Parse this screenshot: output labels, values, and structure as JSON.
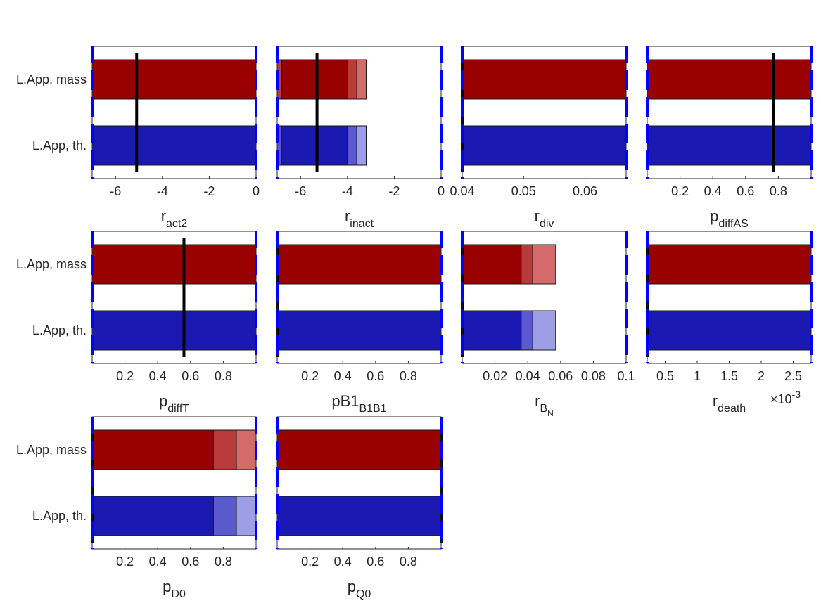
{
  "figure": {
    "row_labels": [
      "L.App, mass",
      "L.App, th."
    ]
  },
  "colors": {
    "mass_dark": "#990000",
    "mass_mid": "#b83a3a",
    "mass_light": "#d46a6a",
    "th_dark": "#1a1ab3",
    "th_mid": "#5a5acc",
    "th_light": "#9e9ee6",
    "bound_line": "#0000ff",
    "estimate_line": "#000000"
  },
  "chart_data": [
    {
      "type": "bar",
      "xlabel_main": "r",
      "xlabel_sub": "act2",
      "xlim": [
        -7,
        0
      ],
      "xticks": [
        -6,
        -4,
        -2,
        0
      ],
      "xtick_labels": [
        "-6",
        "-4",
        "-2",
        "0"
      ],
      "estimate": -5.1,
      "series": [
        {
          "segments": [
            {
              "from": -7,
              "to": 0,
              "shade": "dark"
            }
          ]
        },
        {
          "segments": [
            {
              "from": -7,
              "to": 0,
              "shade": "dark"
            }
          ]
        }
      ]
    },
    {
      "type": "bar",
      "xlabel_main": "r",
      "xlabel_sub": "inact",
      "xlim": [
        -7,
        0
      ],
      "xticks": [
        -6,
        -4,
        -2,
        0
      ],
      "xtick_labels": [
        "-6",
        "-4",
        "-2",
        "0"
      ],
      "estimate": -5.3,
      "series": [
        {
          "segments": [
            {
              "from": -7,
              "to": -6.8,
              "shade": "mid"
            },
            {
              "from": -6.8,
              "to": -4.0,
              "shade": "dark"
            },
            {
              "from": -4.0,
              "to": -3.6,
              "shade": "mid"
            },
            {
              "from": -3.6,
              "to": -3.2,
              "shade": "light"
            }
          ]
        },
        {
          "segments": [
            {
              "from": -7,
              "to": -6.8,
              "shade": "mid"
            },
            {
              "from": -6.8,
              "to": -4.0,
              "shade": "dark"
            },
            {
              "from": -4.0,
              "to": -3.6,
              "shade": "mid"
            },
            {
              "from": -3.6,
              "to": -3.2,
              "shade": "light"
            }
          ]
        }
      ]
    },
    {
      "type": "bar",
      "xlabel_main": "r",
      "xlabel_sub": "div",
      "xlim": [
        0.04,
        0.0667
      ],
      "xticks": [
        0.04,
        0.05,
        0.06
      ],
      "xtick_labels": [
        "0.04",
        "0.05",
        "0.06"
      ],
      "estimate": 0.04,
      "series": [
        {
          "segments": [
            {
              "from": 0.04,
              "to": 0.0667,
              "shade": "dark"
            }
          ]
        },
        {
          "segments": [
            {
              "from": 0.04,
              "to": 0.0667,
              "shade": "dark"
            }
          ]
        }
      ]
    },
    {
      "type": "bar",
      "xlabel_main": "p",
      "xlabel_sub": "diffAS",
      "xlim": [
        0,
        1
      ],
      "xticks": [
        0.2,
        0.4,
        0.6,
        0.8
      ],
      "xtick_labels": [
        "0.2",
        "0.4",
        "0.6",
        "0.8"
      ],
      "estimate": 0.77,
      "series": [
        {
          "segments": [
            {
              "from": 0,
              "to": 1,
              "shade": "dark"
            }
          ]
        },
        {
          "segments": [
            {
              "from": 0,
              "to": 1,
              "shade": "dark"
            }
          ]
        }
      ]
    },
    {
      "type": "bar",
      "xlabel_main": "p",
      "xlabel_sub": "diffT",
      "xlim": [
        0,
        1
      ],
      "xticks": [
        0.2,
        0.4,
        0.6,
        0.8
      ],
      "xtick_labels": [
        "0.2",
        "0.4",
        "0.6",
        "0.8"
      ],
      "estimate": 0.56,
      "series": [
        {
          "segments": [
            {
              "from": 0,
              "to": 1,
              "shade": "dark"
            }
          ]
        },
        {
          "segments": [
            {
              "from": 0,
              "to": 1,
              "shade": "dark"
            }
          ]
        }
      ]
    },
    {
      "type": "bar",
      "xlabel_main": "pB1",
      "xlabel_sub": "B1B1",
      "xlim": [
        0,
        1
      ],
      "xticks": [
        0.2,
        0.4,
        0.6,
        0.8
      ],
      "xtick_labels": [
        "0.2",
        "0.4",
        "0.6",
        "0.8"
      ],
      "estimate": 0.0,
      "series": [
        {
          "segments": [
            {
              "from": 0,
              "to": 1,
              "shade": "dark"
            }
          ]
        },
        {
          "segments": [
            {
              "from": 0,
              "to": 1,
              "shade": "dark"
            }
          ]
        }
      ]
    },
    {
      "type": "bar",
      "xlabel_main": "r",
      "xlabel_sub": "B",
      "xlabel_subsub": "N",
      "xlim": [
        0,
        0.1
      ],
      "xticks": [
        0.02,
        0.04,
        0.06,
        0.08,
        0.1
      ],
      "xtick_labels": [
        "0.02",
        "0.04",
        "0.06",
        "0.08",
        "0.1"
      ],
      "estimate": 0.0,
      "series": [
        {
          "segments": [
            {
              "from": 0,
              "to": 0.036,
              "shade": "dark"
            },
            {
              "from": 0.036,
              "to": 0.043,
              "shade": "mid"
            },
            {
              "from": 0.043,
              "to": 0.057,
              "shade": "light"
            }
          ]
        },
        {
          "segments": [
            {
              "from": 0,
              "to": 0.036,
              "shade": "dark"
            },
            {
              "from": 0.036,
              "to": 0.043,
              "shade": "mid"
            },
            {
              "from": 0.043,
              "to": 0.057,
              "shade": "light"
            }
          ]
        }
      ]
    },
    {
      "type": "bar",
      "xlabel_main": "r",
      "xlabel_sub": "death",
      "exponent_label": "×10",
      "exponent_power": "-3",
      "xlim": [
        0.00022,
        0.00278
      ],
      "xticks": [
        0.0005,
        0.001,
        0.0015,
        0.002,
        0.0025
      ],
      "xtick_labels": [
        "0.5",
        "1",
        "1.5",
        "2",
        "2.5"
      ],
      "estimate": 0.00022,
      "series": [
        {
          "segments": [
            {
              "from": 0.00022,
              "to": 0.00278,
              "shade": "dark"
            }
          ]
        },
        {
          "segments": [
            {
              "from": 0.00022,
              "to": 0.00278,
              "shade": "dark"
            }
          ]
        }
      ]
    },
    {
      "type": "bar",
      "xlabel_main": "p",
      "xlabel_sub": "D0",
      "xlim": [
        0,
        1
      ],
      "xticks": [
        0.2,
        0.4,
        0.6,
        0.8
      ],
      "xtick_labels": [
        "0.2",
        "0.4",
        "0.6",
        "0.8"
      ],
      "estimate": 0.0,
      "series": [
        {
          "segments": [
            {
              "from": 0,
              "to": 0.74,
              "shade": "dark"
            },
            {
              "from": 0.74,
              "to": 0.88,
              "shade": "mid"
            },
            {
              "from": 0.88,
              "to": 1.0,
              "shade": "light"
            }
          ]
        },
        {
          "segments": [
            {
              "from": 0,
              "to": 0.74,
              "shade": "dark"
            },
            {
              "from": 0.74,
              "to": 0.88,
              "shade": "mid"
            },
            {
              "from": 0.88,
              "to": 1.0,
              "shade": "light"
            }
          ]
        }
      ]
    },
    {
      "type": "bar",
      "xlabel_main": "p",
      "xlabel_sub": "Q0",
      "xlim": [
        0,
        1
      ],
      "xticks": [
        0.2,
        0.4,
        0.6,
        0.8
      ],
      "xtick_labels": [
        "0.2",
        "0.4",
        "0.6",
        "0.8"
      ],
      "estimate": 1.0,
      "series": [
        {
          "segments": [
            {
              "from": 0,
              "to": 1,
              "shade": "dark"
            }
          ]
        },
        {
          "segments": [
            {
              "from": 0,
              "to": 1,
              "shade": "dark"
            }
          ]
        }
      ]
    }
  ]
}
